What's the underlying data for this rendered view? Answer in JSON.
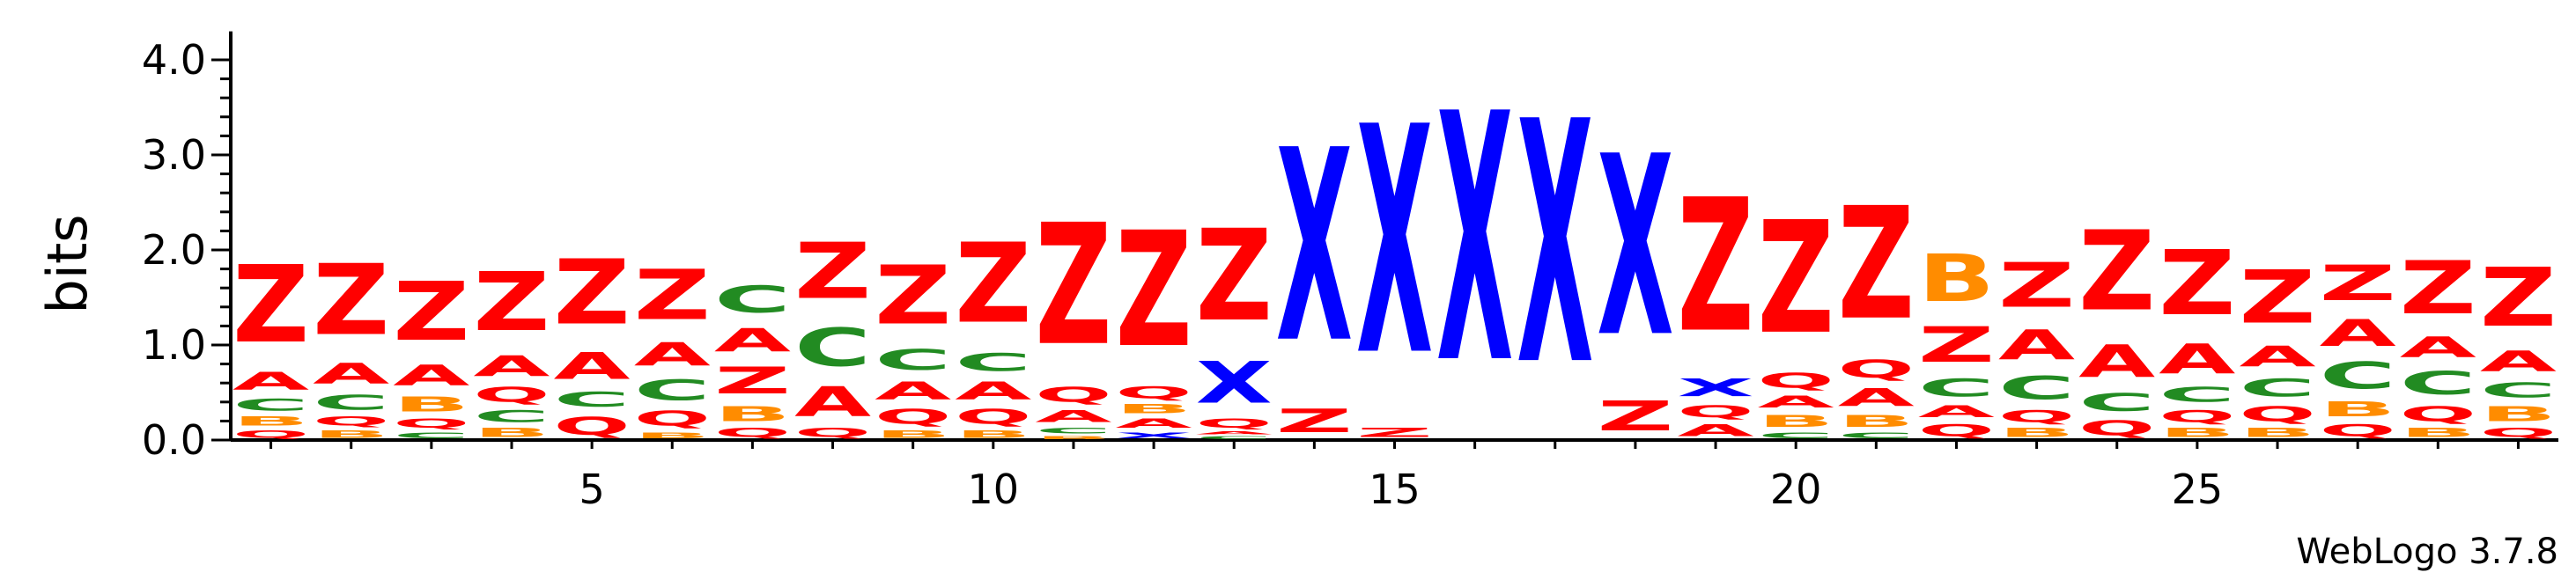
{
  "chart_data": {
    "type": "sequence_logo",
    "ylabel": "bits",
    "ylim": [
      0,
      4.3
    ],
    "y_ticks": [
      {
        "value": 0.0,
        "label": "0.0"
      },
      {
        "value": 1.0,
        "label": "1.0"
      },
      {
        "value": 2.0,
        "label": "2.0"
      },
      {
        "value": 3.0,
        "label": "3.0"
      },
      {
        "value": 4.0,
        "label": "4.0"
      }
    ],
    "x_ticks": [
      {
        "value": 5,
        "label": "5"
      },
      {
        "value": 10,
        "label": "10"
      },
      {
        "value": 15,
        "label": "15"
      },
      {
        "value": 20,
        "label": "20"
      },
      {
        "value": 25,
        "label": "25"
      }
    ],
    "n_positions": 29,
    "colors": {
      "Z": "#ff0000",
      "A": "#ff0000",
      "Q": "#ff0000",
      "C": "#228b22",
      "B": "#ff8c00",
      "X": "#0000ff"
    },
    "positions": [
      {
        "pos": 1,
        "stack": [
          [
            "Q",
            0.12
          ],
          [
            "B",
            0.15
          ],
          [
            "C",
            0.2
          ],
          [
            "A",
            0.3
          ],
          [
            "Z",
            1.3
          ]
        ]
      },
      {
        "pos": 2,
        "stack": [
          [
            "B",
            0.12
          ],
          [
            "Q",
            0.15
          ],
          [
            "C",
            0.25
          ],
          [
            "A",
            0.35
          ],
          [
            "Z",
            1.2
          ]
        ]
      },
      {
        "pos": 3,
        "stack": [
          [
            "C",
            0.1
          ],
          [
            "Q",
            0.15
          ],
          [
            "B",
            0.25
          ],
          [
            "A",
            0.35
          ],
          [
            "Z",
            1.0
          ]
        ]
      },
      {
        "pos": 4,
        "stack": [
          [
            "B",
            0.15
          ],
          [
            "C",
            0.2
          ],
          [
            "Q",
            0.25
          ],
          [
            "A",
            0.35
          ],
          [
            "Z",
            1.0
          ]
        ]
      },
      {
        "pos": 5,
        "stack": [
          [
            "Q",
            0.3
          ],
          [
            "C",
            0.25
          ],
          [
            "A",
            0.45
          ],
          [
            "Z",
            1.1
          ]
        ]
      },
      {
        "pos": 6,
        "stack": [
          [
            "B",
            0.1
          ],
          [
            "Q",
            0.25
          ],
          [
            "C",
            0.35
          ],
          [
            "A",
            0.4
          ],
          [
            "Z",
            0.85
          ]
        ]
      },
      {
        "pos": 7,
        "stack": [
          [
            "Q",
            0.15
          ],
          [
            "B",
            0.25
          ],
          [
            "Z",
            0.45
          ],
          [
            "A",
            0.4
          ],
          [
            "C",
            0.45
          ]
        ]
      },
      {
        "pos": 8,
        "stack": [
          [
            "Q",
            0.15
          ],
          [
            "A",
            0.5
          ],
          [
            "C",
            0.65
          ],
          [
            "Z",
            0.95
          ]
        ]
      },
      {
        "pos": 9,
        "stack": [
          [
            "B",
            0.12
          ],
          [
            "Q",
            0.25
          ],
          [
            "A",
            0.3
          ],
          [
            "C",
            0.35
          ],
          [
            "Z",
            1.0
          ]
        ]
      },
      {
        "pos": 10,
        "stack": [
          [
            "B",
            0.12
          ],
          [
            "Q",
            0.25
          ],
          [
            "A",
            0.3
          ],
          [
            "C",
            0.3
          ],
          [
            "Z",
            1.35
          ]
        ]
      },
      {
        "pos": 11,
        "stack": [
          [
            "B",
            0.05
          ],
          [
            "C",
            0.1
          ],
          [
            "A",
            0.2
          ],
          [
            "Q",
            0.25
          ],
          [
            "Z",
            2.05
          ]
        ]
      },
      {
        "pos": 12,
        "stack": [
          [
            "X",
            0.1
          ],
          [
            "A",
            0.15
          ],
          [
            "B",
            0.15
          ],
          [
            "Q",
            0.2
          ],
          [
            "Z",
            1.95
          ]
        ]
      },
      {
        "pos": 13,
        "stack": [
          [
            "C",
            0.05
          ],
          [
            "A",
            0.05
          ],
          [
            "Q",
            0.15
          ],
          [
            "X",
            0.7
          ],
          [
            "Z",
            1.55
          ]
        ]
      },
      {
        "pos": 14,
        "stack": [
          [
            "Z",
            0.4
          ],
          [
            "X",
            3.25
          ]
        ]
      },
      {
        "pos": 15,
        "stack": [
          [
            "Z",
            0.15
          ],
          [
            "X",
            3.85
          ]
        ]
      },
      {
        "pos": 16,
        "stack": [
          [
            "X",
            4.2
          ]
        ]
      },
      {
        "pos": 17,
        "stack": [
          [
            "X",
            4.1
          ]
        ]
      },
      {
        "pos": 18,
        "stack": [
          [
            "Z",
            0.5
          ],
          [
            "X",
            3.05
          ]
        ]
      },
      {
        "pos": 19,
        "stack": [
          [
            "A",
            0.2
          ],
          [
            "Q",
            0.2
          ],
          [
            "X",
            0.3
          ],
          [
            "Z",
            2.25
          ]
        ]
      },
      {
        "pos": 20,
        "stack": [
          [
            "C",
            0.1
          ],
          [
            "B",
            0.2
          ],
          [
            "A",
            0.2
          ],
          [
            "Q",
            0.25
          ],
          [
            "Z",
            1.9
          ]
        ]
      },
      {
        "pos": 21,
        "stack": [
          [
            "C",
            0.1
          ],
          [
            "B",
            0.2
          ],
          [
            "A",
            0.3
          ],
          [
            "Q",
            0.3
          ],
          [
            "Z",
            1.9
          ]
        ]
      },
      {
        "pos": 22,
        "stack": [
          [
            "Q",
            0.2
          ],
          [
            "A",
            0.2
          ],
          [
            "C",
            0.3
          ],
          [
            "Z",
            0.6
          ],
          [
            "B",
            0.8
          ]
        ]
      },
      {
        "pos": 23,
        "stack": [
          [
            "B",
            0.15
          ],
          [
            "Q",
            0.2
          ],
          [
            "C",
            0.4
          ],
          [
            "A",
            0.5
          ],
          [
            "Z",
            0.75
          ]
        ]
      },
      {
        "pos": 24,
        "stack": [
          [
            "Q",
            0.25
          ],
          [
            "C",
            0.3
          ],
          [
            "A",
            0.55
          ],
          [
            "Z",
            1.35
          ]
        ]
      },
      {
        "pos": 25,
        "stack": [
          [
            "B",
            0.15
          ],
          [
            "Q",
            0.2
          ],
          [
            "C",
            0.25
          ],
          [
            "A",
            0.5
          ],
          [
            "Z",
            1.1
          ]
        ]
      },
      {
        "pos": 26,
        "stack": [
          [
            "B",
            0.15
          ],
          [
            "Q",
            0.25
          ],
          [
            "C",
            0.3
          ],
          [
            "A",
            0.35
          ],
          [
            "Z",
            0.9
          ]
        ]
      },
      {
        "pos": 27,
        "stack": [
          [
            "Q",
            0.2
          ],
          [
            "B",
            0.25
          ],
          [
            "C",
            0.45
          ],
          [
            "A",
            0.45
          ],
          [
            "Z",
            0.6
          ]
        ]
      },
      {
        "pos": 28,
        "stack": [
          [
            "B",
            0.15
          ],
          [
            "Q",
            0.25
          ],
          [
            "C",
            0.4
          ],
          [
            "A",
            0.35
          ],
          [
            "Z",
            0.9
          ]
        ]
      },
      {
        "pos": 29,
        "stack": [
          [
            "Q",
            0.15
          ],
          [
            "B",
            0.25
          ],
          [
            "C",
            0.25
          ],
          [
            "A",
            0.35
          ],
          [
            "Z",
            1.0
          ]
        ]
      }
    ]
  },
  "credit": "WebLogo 3.7.8"
}
